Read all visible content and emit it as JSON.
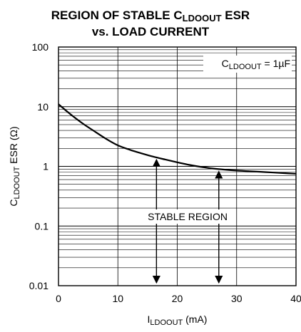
{
  "chart_data": {
    "type": "line",
    "title_line1_prefix": "REGION OF STABLE C",
    "title_line1_sub": "LDOOUT",
    "title_line1_suffix": " ESR",
    "title_line2": "vs. LOAD CURRENT",
    "xlabel_prefix": "I",
    "xlabel_sub": "LDOOUT",
    "xlabel_suffix": " (mA)",
    "ylabel_prefix": "C",
    "ylabel_sub": "LDOOUT",
    "ylabel_suffix": " ESR (Ω)",
    "x_scale": "linear",
    "y_scale": "log",
    "xlim": [
      0,
      40
    ],
    "ylim": [
      0.01,
      100
    ],
    "x_ticks": [
      0,
      10,
      20,
      30,
      40
    ],
    "x_tick_labels": [
      "0",
      "10",
      "20",
      "30",
      "40"
    ],
    "y_ticks": [
      0.01,
      0.1,
      1,
      10,
      100
    ],
    "y_tick_labels": [
      "0.01",
      "0.1",
      "1",
      "10",
      "100"
    ],
    "grid": true,
    "legend_prefix": "C",
    "legend_sub": "LDOOUT",
    "legend_suffix": " = 1µF",
    "legend_position": "top-right",
    "region_label": "STABLE REGION",
    "series": [
      {
        "x": [
          0,
          2,
          4,
          6,
          8,
          10,
          12,
          14,
          16,
          18,
          20,
          22,
          24,
          26,
          28,
          30,
          32,
          34,
          36,
          38,
          40
        ],
        "y": [
          11,
          7.5,
          5.3,
          3.9,
          2.9,
          2.25,
          1.9,
          1.65,
          1.45,
          1.3,
          1.17,
          1.06,
          0.98,
          0.92,
          0.88,
          0.85,
          0.83,
          0.81,
          0.79,
          0.77,
          0.75
        ]
      }
    ],
    "arrows": [
      {
        "x": 16.5,
        "y_top": 1.45,
        "y_bottom": 0.01
      },
      {
        "x": 27,
        "y_top": 0.92,
        "y_bottom": 0.01
      }
    ]
  }
}
